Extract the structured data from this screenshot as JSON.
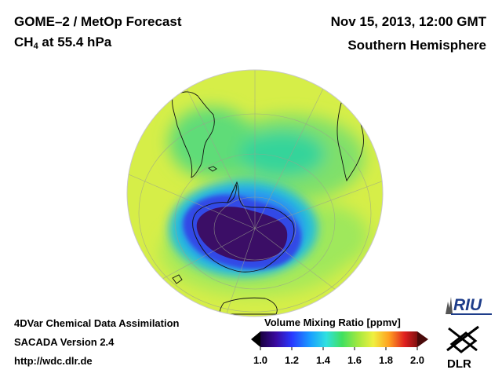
{
  "title_line1": "GOME–2 / MetOp Forecast",
  "title_line2": {
    "species": "CH",
    "subscript": "4",
    "rest": " at 55.4 hPa"
  },
  "date": "Nov 15, 2013, 12:00 GMT",
  "region": "Southern Hemisphere",
  "info": {
    "line1": "4DVar Chemical Data Assimilation",
    "line2": "SACADA Version 2.4",
    "line3": "http://wdc.dlr.de"
  },
  "colorbar": {
    "title": "Volume Mixing Ratio [ppmv]",
    "ticks": [
      "1.0",
      "1.2",
      "1.4",
      "1.6",
      "1.8",
      "2.0"
    ],
    "min": 1.0,
    "max": 2.0
  },
  "logos": {
    "riu": "RIU",
    "dlr": "DLR"
  },
  "map": {
    "projection": "orthographic-south-polar",
    "background_value_ppmv": 1.65,
    "polar_vortex_min_ppmv": 1.0
  }
}
